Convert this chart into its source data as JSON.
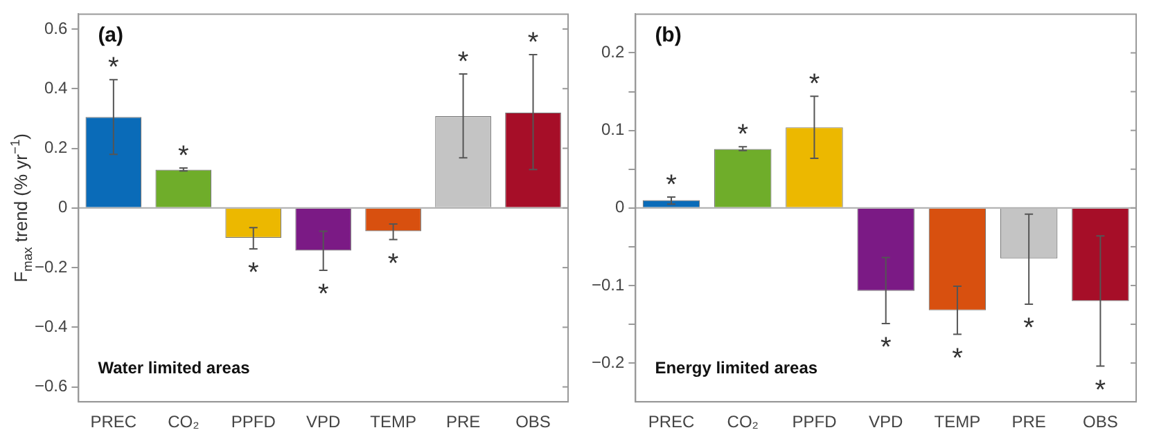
{
  "chart_data": [
    {
      "type": "bar",
      "ylabel": "F$_{max}$ trend (% yr$^{−1}$)",
      "categories": [
        "PREC",
        "CO₂",
        "PPFD",
        "VPD",
        "TEMP",
        "PRE",
        "OBS"
      ],
      "values": [
        0.305,
        0.128,
        -0.1,
        -0.143,
        -0.078,
        0.308,
        0.32
      ],
      "colors": [
        "#0a6bb8",
        "#6fad2a",
        "#ecb800",
        "#7b1a85",
        "#d8500f",
        "#c4c4c4",
        "#a60e28"
      ],
      "errors": [
        [
          0.18,
          0.43
        ],
        [
          0.124,
          0.134
        ],
        [
          -0.137,
          -0.066
        ],
        [
          -0.209,
          -0.078
        ],
        [
          -0.106,
          -0.054
        ],
        [
          0.168,
          0.449
        ],
        [
          0.129,
          0.514
        ]
      ],
      "ylim": [
        -0.65,
        0.65
      ],
      "yticks": [
        -0.6,
        -0.4,
        -0.2,
        0,
        0.2,
        0.4,
        0.6
      ],
      "grid": false,
      "legend": false,
      "ref_lines": [
        {
          "axis": "y",
          "value": 0,
          "color": "#aaaaaa"
        }
      ],
      "annotations": [
        "(a)",
        "Water limited areas",
        "*",
        "*",
        "*",
        "*",
        "*",
        "*",
        "*"
      ]
    },
    {
      "type": "bar",
      "categories": [
        "PREC",
        "CO₂",
        "PPFD",
        "VPD",
        "TEMP",
        "PRE",
        "OBS"
      ],
      "values": [
        0.01,
        0.076,
        0.104,
        -0.107,
        -0.132,
        -0.065,
        -0.12
      ],
      "colors": [
        "#0a6bb8",
        "#6fad2a",
        "#ecb800",
        "#7b1a85",
        "#d8500f",
        "#c4c4c4",
        "#a60e28"
      ],
      "errors": [
        [
          0.005,
          0.014
        ],
        [
          0.074,
          0.079
        ],
        [
          0.064,
          0.144
        ],
        [
          -0.149,
          -0.064
        ],
        [
          -0.163,
          -0.101
        ],
        [
          -0.124,
          -0.008
        ],
        [
          -0.204,
          -0.036
        ]
      ],
      "ylim": [
        -0.25,
        0.25
      ],
      "yticks": [
        -0.2,
        {
          "value": -0.15,
          "label": null
        },
        -0.1,
        {
          "value": -0.05,
          "label": null
        },
        0,
        {
          "value": 0.05,
          "label": null
        },
        0.1,
        {
          "value": 0.15,
          "label": null
        },
        0.2
      ],
      "grid": false,
      "legend": false,
      "ref_lines": [
        {
          "axis": "y",
          "value": 0,
          "color": "#aaaaaa"
        }
      ],
      "annotations": [
        "(b)",
        "Energy limited areas",
        "*",
        "*",
        "*",
        "*",
        "*",
        "*",
        "*"
      ]
    }
  ]
}
